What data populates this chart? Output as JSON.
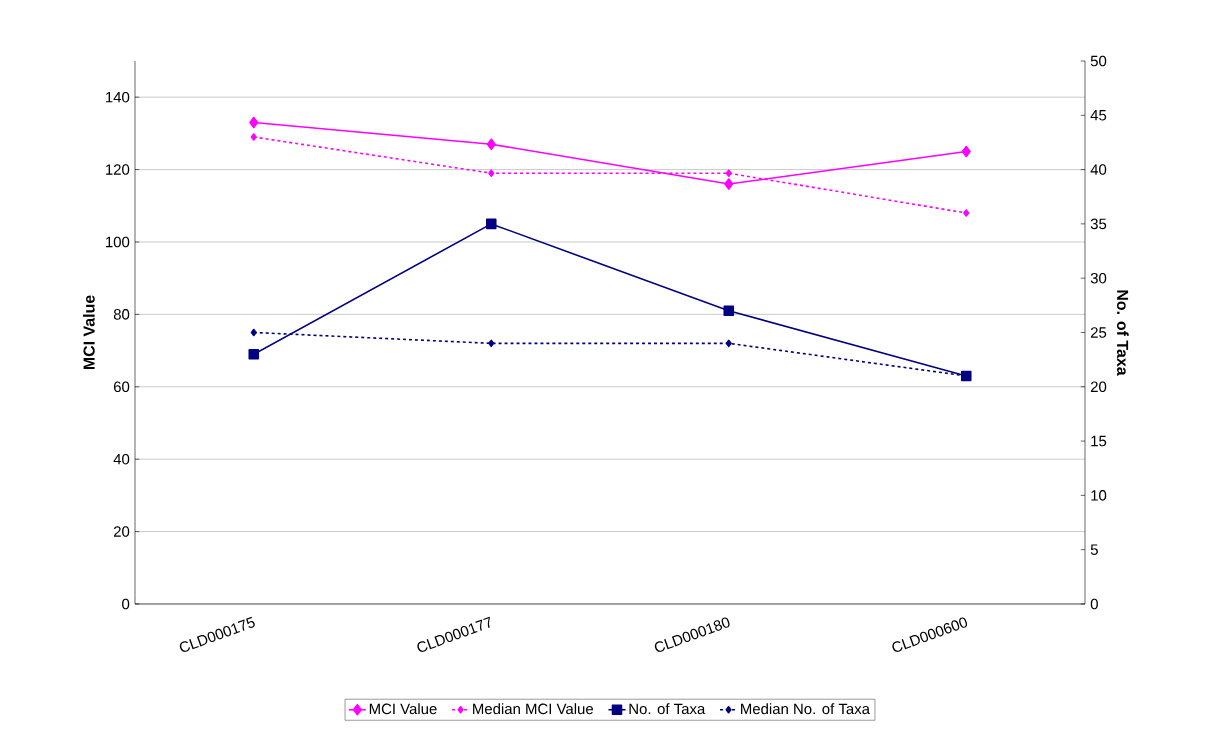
{
  "chart_data": {
    "type": "line",
    "ylabel": "MCI Value",
    "y2label": "No. of Taxa",
    "categories": [
      "CLD000175",
      "CLD000177",
      "CLD000180",
      "CLD000600"
    ],
    "series": [
      {
        "name": "MCI Value",
        "color": "#ff00ff",
        "values": [
          133,
          127,
          116,
          125
        ],
        "marker": "diamond",
        "line_style": "solid"
      },
      {
        "name": "Median MCI Value",
        "color": "#ff00ff",
        "values": [
          129,
          119,
          119,
          108
        ],
        "marker": "diamond",
        "line_style": "dashed"
      },
      {
        "name": "No. of Taxa",
        "color": "#000080",
        "values": [
          23,
          35,
          27,
          21
        ],
        "marker": "square",
        "line_style": "solid",
        "axis": "y2"
      },
      {
        "name": "Median No. of Taxa",
        "color": "#000080",
        "values": [
          25,
          24,
          24,
          21
        ],
        "marker": "diamond",
        "line_style": "dashed",
        "axis": "y2"
      }
    ],
    "ylim": [
      0,
      150
    ],
    "yticks": [
      0,
      20,
      40,
      60,
      80,
      100,
      120,
      140
    ],
    "y2lim": [
      0,
      50
    ],
    "y2ticks": [
      0,
      5,
      10,
      15,
      20,
      25,
      30,
      35,
      40,
      45,
      50
    ],
    "grid": "y",
    "legend": "bottom"
  }
}
